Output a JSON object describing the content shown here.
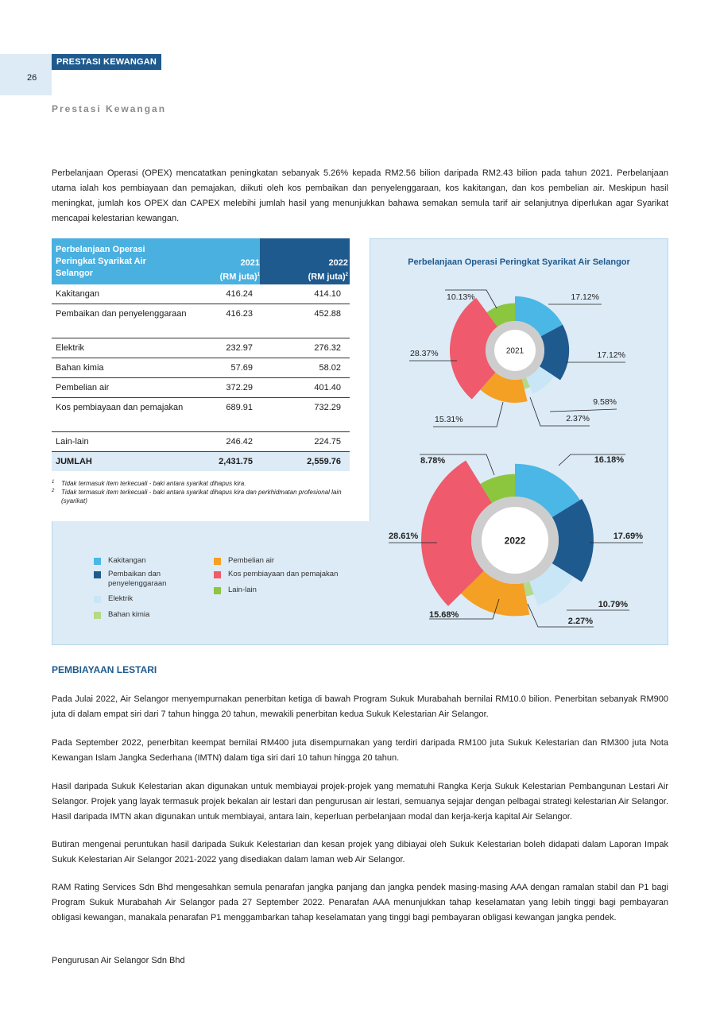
{
  "header": {
    "page_number": "26",
    "section_tag": "PRESTASI KEWANGAN",
    "subtitle": "Prestasi Kewangan"
  },
  "intro_paragraph": "Perbelanjaan Operasi (OPEX) mencatatkan peningkatan sebanyak 5.26% kepada RM2.56 bilion daripada RM2.43 bilion pada tahun 2021. Perbelanjaan utama ialah kos pembiayaan dan pemajakan, diikuti oleh kos pembaikan dan penyelenggaraan, kos kakitangan, dan kos pembelian air. Meskipun hasil meningkat, jumlah kos OPEX dan CAPEX melebihi jumlah hasil yang menunjukkan bahawa semakan semula tarif air selanjutnya diperlukan agar Syarikat mencapai kelestarian kewangan.",
  "table": {
    "header_label_l1": "Perbelanjaan Operasi",
    "header_label_l2": "Peringkat Syarikat Air",
    "header_label_l3": "Selangor",
    "col_2021_year": "2021",
    "col_2021_unit": "(RM juta)",
    "col_2021_sup": "1",
    "col_2022_year": "2022",
    "col_2022_unit": "(RM juta)",
    "col_2022_sup": "2",
    "rows": [
      {
        "label": "Kakitangan",
        "v2021": "416.24",
        "v2022": "414.10"
      },
      {
        "label": "Pembaikan dan penyelenggaraan",
        "v2021": "416.23",
        "v2022": "452.88"
      },
      {
        "label": "Elektrik",
        "v2021": "232.97",
        "v2022": "276.32"
      },
      {
        "label": "Bahan kimia",
        "v2021": "57.69",
        "v2022": "58.02"
      },
      {
        "label": "Pembelian air",
        "v2021": "372.29",
        "v2022": "401.40"
      },
      {
        "label": "Kos pembiayaan dan pemajakan",
        "v2021": "689.91",
        "v2022": "732.29"
      },
      {
        "label": "Lain-lain",
        "v2021": "246.42",
        "v2022": "224.75"
      }
    ],
    "total": {
      "label": "JUMLAH",
      "v2021": "2,431.75",
      "v2022": "2,559.76"
    },
    "notes": [
      {
        "sup": "1",
        "text": "Tidak termasuk item terkecuali - baki antara syarikat dihapus kira."
      },
      {
        "sup": "2",
        "text": "Tidak termasuk item terkecuali - baki antara syarikat dihapus kira dan perkhidmatan profesional lain (syarikat)"
      }
    ]
  },
  "colors": {
    "kakitangan": "#4ab7e6",
    "pembaikan": "#1f5a8e",
    "elektrik": "#c9e6f6",
    "bahan_kimia": "#b5d98a",
    "pembelian_air": "#f4a024",
    "kos_pembiayaan": "#ef5a6c",
    "lain_lain": "#8cc63f"
  },
  "chart_data": {
    "type": "pie",
    "title": "Perbelanjaan Operasi Peringkat Syarikat Air Selangor",
    "categories": [
      "Kakitangan",
      "Pembaikan dan penyelenggaraan",
      "Elektrik",
      "Bahan kimia",
      "Pembelian air",
      "Kos pembiayaan dan pemajakan",
      "Lain-lain"
    ],
    "series": [
      {
        "name": "2021",
        "values": [
          17.12,
          17.12,
          9.58,
          2.37,
          15.31,
          28.37,
          10.13
        ],
        "labels": [
          "17.12%",
          "17.12%",
          "9.58%",
          "2.37%",
          "15.31%",
          "28.37%",
          "10.13%"
        ]
      },
      {
        "name": "2022",
        "values": [
          16.18,
          17.69,
          10.79,
          2.27,
          15.68,
          28.61,
          8.78
        ],
        "labels": [
          "16.18%",
          "17.69%",
          "10.79%",
          "2.27%",
          "15.68%",
          "28.61%",
          "8.78%"
        ]
      }
    ],
    "legend_placement": "bottom-left"
  },
  "legend": {
    "items": [
      {
        "label": "Kakitangan",
        "color_key": "kakitangan"
      },
      {
        "label": "Pembaikan dan penyelenggaraan",
        "color_key": "pembaikan"
      },
      {
        "label": "Elektrik",
        "color_key": "elektrik"
      },
      {
        "label": "Bahan kimia",
        "color_key": "bahan_kimia"
      },
      {
        "label": "Pembelian air",
        "color_key": "pembelian_air"
      },
      {
        "label": "Kos pembiayaan dan pemajakan",
        "color_key": "kos_pembiayaan"
      },
      {
        "label": "Lain-lain",
        "color_key": "lain_lain"
      }
    ]
  },
  "section2": {
    "heading": "PEMBIAYAAN LESTARI",
    "paragraphs": [
      "Pada Julai 2022, Air Selangor menyempurnakan penerbitan ketiga di bawah Program Sukuk Murabahah bernilai RM10.0 bilion. Penerbitan sebanyak RM900 juta di dalam empat siri dari 7 tahun hingga 20 tahun, mewakili penerbitan kedua Sukuk Kelestarian Air Selangor.",
      "Pada September 2022, penerbitan keempat bernilai RM400 juta disempurnakan yang terdiri daripada RM100 juta Sukuk Kelestarian dan RM300 juta Nota Kewangan Islam Jangka Sederhana (IMTN) dalam tiga siri dari 10 tahun hingga 20 tahun.",
      "Hasil daripada Sukuk Kelestarian akan digunakan untuk membiayai projek-projek yang mematuhi Rangka Kerja Sukuk Kelestarian Pembangunan Lestari Air Selangor. Projek yang layak termasuk projek bekalan air lestari dan pengurusan air lestari, semuanya sejajar dengan pelbagai strategi kelestarian Air Selangor. Hasil daripada IMTN akan digunakan untuk membiayai, antara lain, keperluan perbelanjaan modal dan kerja-kerja kapital Air Selangor.",
      "Butiran mengenai peruntukan hasil daripada Sukuk Kelestarian dan kesan projek yang dibiayai oleh Sukuk Kelestarian boleh didapati dalam Laporan Impak Sukuk Kelestarian Air Selangor 2021-2022 yang disediakan dalam laman web Air Selangor.",
      "RAM Rating Services Sdn Bhd mengesahkan semula penarafan jangka panjang dan jangka pendek masing-masing AAA dengan ramalan stabil dan P1 bagi Program Sukuk Murabahah Air Selangor pada 27 September 2022. Penarafan AAA menunjukkan tahap keselamatan yang lebih tinggi bagi pembayaran obligasi kewangan, manakala penarafan P1 menggambarkan tahap keselamatan yang tinggi bagi pembayaran obligasi kewangan jangka pendek."
    ]
  },
  "footer": {
    "company": "Pengurusan Air Selangor Sdn Bhd"
  }
}
